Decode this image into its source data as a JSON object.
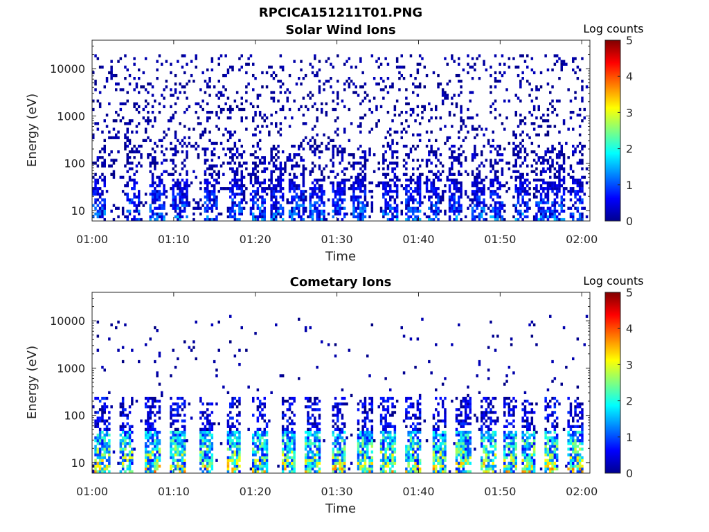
{
  "figure": {
    "title": "RPCICA151211T01.PNG"
  },
  "chart_data": [
    {
      "type": "heatmap",
      "title": "Solar Wind Ions",
      "xlabel": "Time",
      "ylabel": "Energy (eV)",
      "x_ticks": [
        "01:00",
        "01:10",
        "01:20",
        "01:30",
        "01:40",
        "01:50",
        "02:00"
      ],
      "xlim_minutes": [
        0,
        61
      ],
      "y_ticks": [
        "10",
        "100",
        "1000",
        "10000"
      ],
      "y_tick_values": [
        10,
        100,
        1000,
        10000
      ],
      "ylim": [
        6,
        40000
      ],
      "y_scale": "log",
      "colorbar": {
        "label": "Log counts",
        "ticks": [
          "0",
          "1",
          "2",
          "3",
          "4",
          "5"
        ],
        "range": [
          0,
          5
        ],
        "colormap": "jet"
      },
      "burst_minutes": [
        0.7,
        5.0,
        8.0,
        10.8,
        14.5,
        17.6,
        20.3,
        22.7,
        25.0,
        27.6,
        30.2,
        32.8,
        36.5,
        39.3,
        41.7,
        44.5,
        47.3,
        49.5,
        52.6,
        55.3,
        57.0,
        59.4
      ],
      "burst_max_log_counts": 1.6,
      "background_max_log_counts": 0.3
    },
    {
      "type": "heatmap",
      "title": "Cometary Ions",
      "xlabel": "Time",
      "ylabel": "Energy (eV)",
      "x_ticks": [
        "01:00",
        "01:10",
        "01:20",
        "01:30",
        "01:40",
        "01:50",
        "02:00"
      ],
      "xlim_minutes": [
        0,
        61
      ],
      "y_ticks": [
        "10",
        "100",
        "1000",
        "10000"
      ],
      "y_tick_values": [
        10,
        100,
        1000,
        10000
      ],
      "ylim": [
        6,
        40000
      ],
      "y_scale": "log",
      "colorbar": {
        "label": "Log counts",
        "ticks": [
          "0",
          "1",
          "2",
          "3",
          "4",
          "5"
        ],
        "range": [
          0,
          5
        ],
        "colormap": "jet"
      },
      "burst_minutes": [
        1.2,
        4.2,
        7.4,
        10.5,
        14.0,
        17.4,
        20.6,
        24.0,
        27.0,
        30.2,
        33.5,
        36.2,
        39.3,
        42.5,
        45.5,
        48.6,
        51.2,
        53.5,
        56.3,
        59.2
      ],
      "burst_max_log_counts": 3.4,
      "background_max_log_counts": 0.3
    }
  ]
}
